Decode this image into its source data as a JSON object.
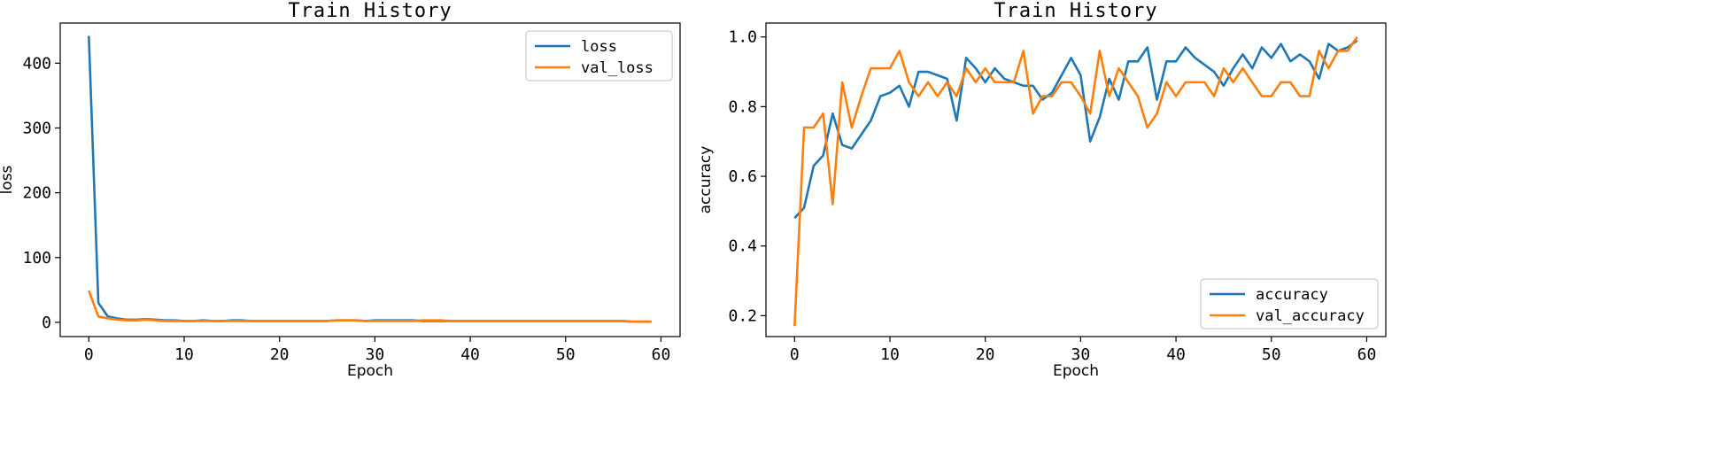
{
  "chart_data": [
    {
      "type": "line",
      "title": "Train History",
      "xlabel": "Epoch",
      "ylabel": "loss",
      "xlim": [
        -3,
        62
      ],
      "ylim": [
        -22,
        462
      ],
      "xticks": [
        0,
        10,
        20,
        30,
        40,
        50,
        60
      ],
      "yticks": [
        0,
        100,
        200,
        300,
        400
      ],
      "legend_position": "top-right",
      "grid": false,
      "x": [
        0,
        1,
        2,
        3,
        4,
        5,
        6,
        7,
        8,
        9,
        10,
        11,
        12,
        13,
        14,
        15,
        16,
        17,
        18,
        19,
        20,
        21,
        22,
        23,
        24,
        25,
        26,
        27,
        28,
        29,
        30,
        31,
        32,
        33,
        34,
        35,
        36,
        37,
        38,
        39,
        40,
        41,
        42,
        43,
        44,
        45,
        46,
        47,
        48,
        49,
        50,
        51,
        52,
        53,
        54,
        55,
        56,
        57,
        58,
        59
      ],
      "series": [
        {
          "name": "loss",
          "color": "#1f77b4",
          "values": [
            442,
            30,
            9,
            6,
            4,
            4,
            5,
            4,
            3,
            3,
            2,
            2,
            3,
            2,
            2,
            3,
            3,
            2,
            2,
            2,
            2,
            2,
            2,
            2,
            2,
            2,
            3,
            3,
            3,
            2,
            3,
            3,
            3,
            3,
            3,
            2,
            2,
            2,
            2,
            2,
            2,
            2,
            2,
            2,
            2,
            2,
            2,
            2,
            2,
            2,
            2,
            2,
            2,
            2,
            2,
            2,
            2,
            1,
            1,
            1
          ]
        },
        {
          "name": "val_loss",
          "color": "#ff7f0e",
          "values": [
            49,
            9,
            6,
            4,
            3,
            3,
            4,
            3,
            2,
            2,
            2,
            2,
            2,
            2,
            2,
            2,
            2,
            2,
            2,
            2,
            2,
            2,
            2,
            2,
            2,
            2,
            3,
            3,
            3,
            2,
            2,
            2,
            2,
            2,
            2,
            3,
            3,
            3,
            2,
            2,
            2,
            2,
            2,
            2,
            2,
            2,
            2,
            2,
            2,
            2,
            2,
            2,
            2,
            2,
            2,
            2,
            2,
            1,
            1,
            1
          ]
        }
      ]
    },
    {
      "type": "line",
      "title": "Train History",
      "xlabel": "Epoch",
      "ylabel": "accuracy",
      "xlim": [
        -3,
        62
      ],
      "ylim": [
        0.14,
        1.04
      ],
      "xticks": [
        0,
        10,
        20,
        30,
        40,
        50,
        60
      ],
      "yticks": [
        0.2,
        0.4,
        0.6,
        0.8,
        1.0
      ],
      "ytick_labels": [
        "0.2",
        "0.4",
        "0.6",
        "0.8",
        "1.0"
      ],
      "legend_position": "bottom-right",
      "grid": false,
      "x": [
        0,
        1,
        2,
        3,
        4,
        5,
        6,
        7,
        8,
        9,
        10,
        11,
        12,
        13,
        14,
        15,
        16,
        17,
        18,
        19,
        20,
        21,
        22,
        23,
        24,
        25,
        26,
        27,
        28,
        29,
        30,
        31,
        32,
        33,
        34,
        35,
        36,
        37,
        38,
        39,
        40,
        41,
        42,
        43,
        44,
        45,
        46,
        47,
        48,
        49,
        50,
        51,
        52,
        53,
        54,
        55,
        56,
        57,
        58,
        59
      ],
      "series": [
        {
          "name": "accuracy",
          "color": "#1f77b4",
          "values": [
            0.48,
            0.51,
            0.63,
            0.66,
            0.78,
            0.69,
            0.68,
            0.72,
            0.76,
            0.83,
            0.84,
            0.86,
            0.8,
            0.9,
            0.9,
            0.89,
            0.88,
            0.76,
            0.94,
            0.91,
            0.87,
            0.91,
            0.88,
            0.87,
            0.86,
            0.86,
            0.82,
            0.84,
            0.89,
            0.94,
            0.89,
            0.7,
            0.77,
            0.88,
            0.82,
            0.93,
            0.93,
            0.97,
            0.82,
            0.93,
            0.93,
            0.97,
            0.94,
            0.92,
            0.9,
            0.86,
            0.91,
            0.95,
            0.91,
            0.97,
            0.94,
            0.98,
            0.93,
            0.95,
            0.93,
            0.88,
            0.98,
            0.96,
            0.97,
            0.99
          ]
        },
        {
          "name": "val_accuracy",
          "color": "#ff7f0e",
          "values": [
            0.17,
            0.74,
            0.74,
            0.78,
            0.52,
            0.87,
            0.74,
            0.83,
            0.91,
            0.91,
            0.91,
            0.96,
            0.87,
            0.83,
            0.87,
            0.83,
            0.87,
            0.83,
            0.91,
            0.87,
            0.91,
            0.87,
            0.87,
            0.87,
            0.96,
            0.78,
            0.83,
            0.83,
            0.87,
            0.87,
            0.83,
            0.78,
            0.96,
            0.83,
            0.91,
            0.87,
            0.83,
            0.74,
            0.78,
            0.87,
            0.83,
            0.87,
            0.87,
            0.87,
            0.83,
            0.91,
            0.87,
            0.91,
            0.87,
            0.83,
            0.83,
            0.87,
            0.87,
            0.83,
            0.83,
            0.96,
            0.91,
            0.96,
            0.96,
            1.0
          ]
        }
      ]
    }
  ]
}
